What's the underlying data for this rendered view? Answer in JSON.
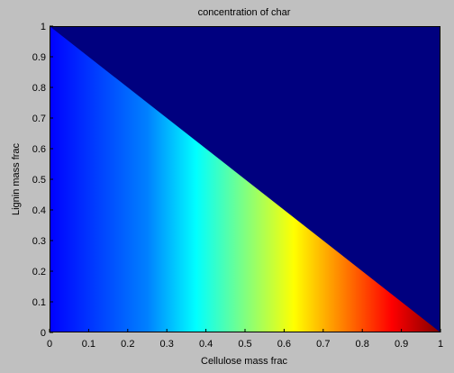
{
  "chart_data": {
    "type": "heatmap",
    "title": "concentration of char",
    "xlabel": "Cellulose mass frac",
    "ylabel": "Lignin mass frac",
    "xlim": [
      0,
      1
    ],
    "ylim": [
      0,
      1
    ],
    "xticks": [
      "0",
      "0.1",
      "0.2",
      "0.3",
      "0.4",
      "0.5",
      "0.6",
      "0.7",
      "0.8",
      "0.9",
      "1"
    ],
    "yticks": [
      "0",
      "0.1",
      "0.2",
      "0.3",
      "0.4",
      "0.5",
      "0.6",
      "0.7",
      "0.8",
      "0.9",
      "1"
    ],
    "colormap": "jet",
    "grid": false,
    "legend": "none",
    "domain": "x + y <= 1 (filled with colormap increasing along x)",
    "outside_domain_color": "#00007f",
    "colors": {
      "figure_background": "#c0c0c0",
      "colormap_low": "#0000ff",
      "colormap_high": "#7f0000"
    }
  }
}
